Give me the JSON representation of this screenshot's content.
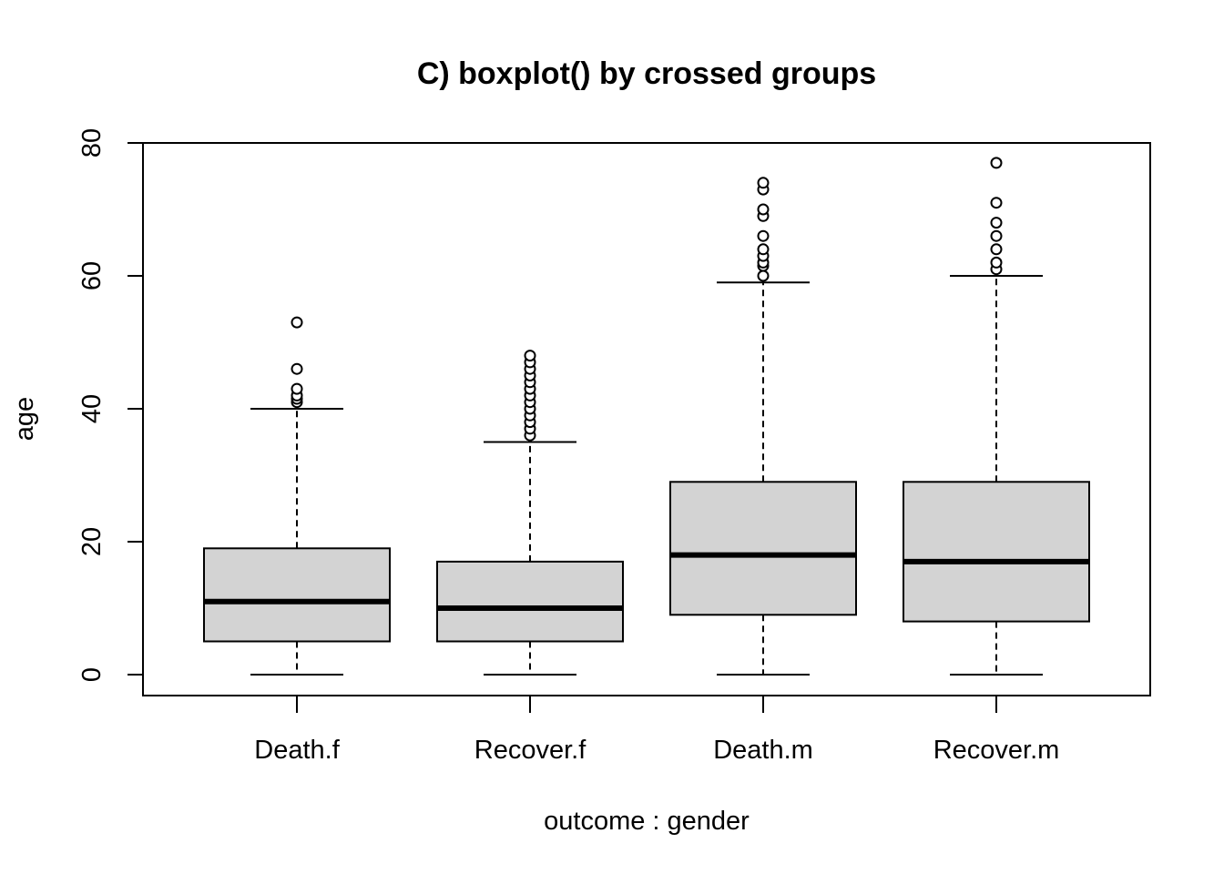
{
  "chart_data": {
    "type": "boxplot",
    "title": "C) boxplot() by crossed groups",
    "xlabel": "outcome : gender",
    "ylabel": "age",
    "ylim": [
      -3.2,
      80
    ],
    "yticks": [
      0,
      20,
      40,
      60,
      80
    ],
    "ytick_labels": [
      "0",
      "20",
      "40",
      "60",
      "80"
    ],
    "box_fill": "#d3d3d3",
    "categories": [
      "Death.f",
      "Recover.f",
      "Death.m",
      "Recover.m"
    ],
    "boxes": [
      {
        "name": "Death.f",
        "whisker_low": 0,
        "q1": 5,
        "median": 11,
        "q3": 19,
        "whisker_high": 40,
        "outliers": [
          41,
          41.5,
          42,
          43,
          46,
          53
        ]
      },
      {
        "name": "Recover.f",
        "whisker_low": 0,
        "q1": 5,
        "median": 10,
        "q3": 17,
        "whisker_high": 35,
        "outliers": [
          36,
          37,
          38,
          39,
          40,
          41,
          42,
          43,
          44,
          45,
          46,
          47,
          48
        ]
      },
      {
        "name": "Death.m",
        "whisker_low": 0,
        "q1": 9,
        "median": 18,
        "q3": 29,
        "whisker_high": 59,
        "outliers": [
          60,
          61.5,
          62,
          63,
          64,
          66,
          69,
          70,
          73,
          74
        ]
      },
      {
        "name": "Recover.m",
        "whisker_low": 0,
        "q1": 8,
        "median": 17,
        "q3": 29,
        "whisker_high": 60,
        "outliers": [
          61,
          62,
          64,
          66,
          68,
          71,
          77
        ]
      }
    ]
  }
}
